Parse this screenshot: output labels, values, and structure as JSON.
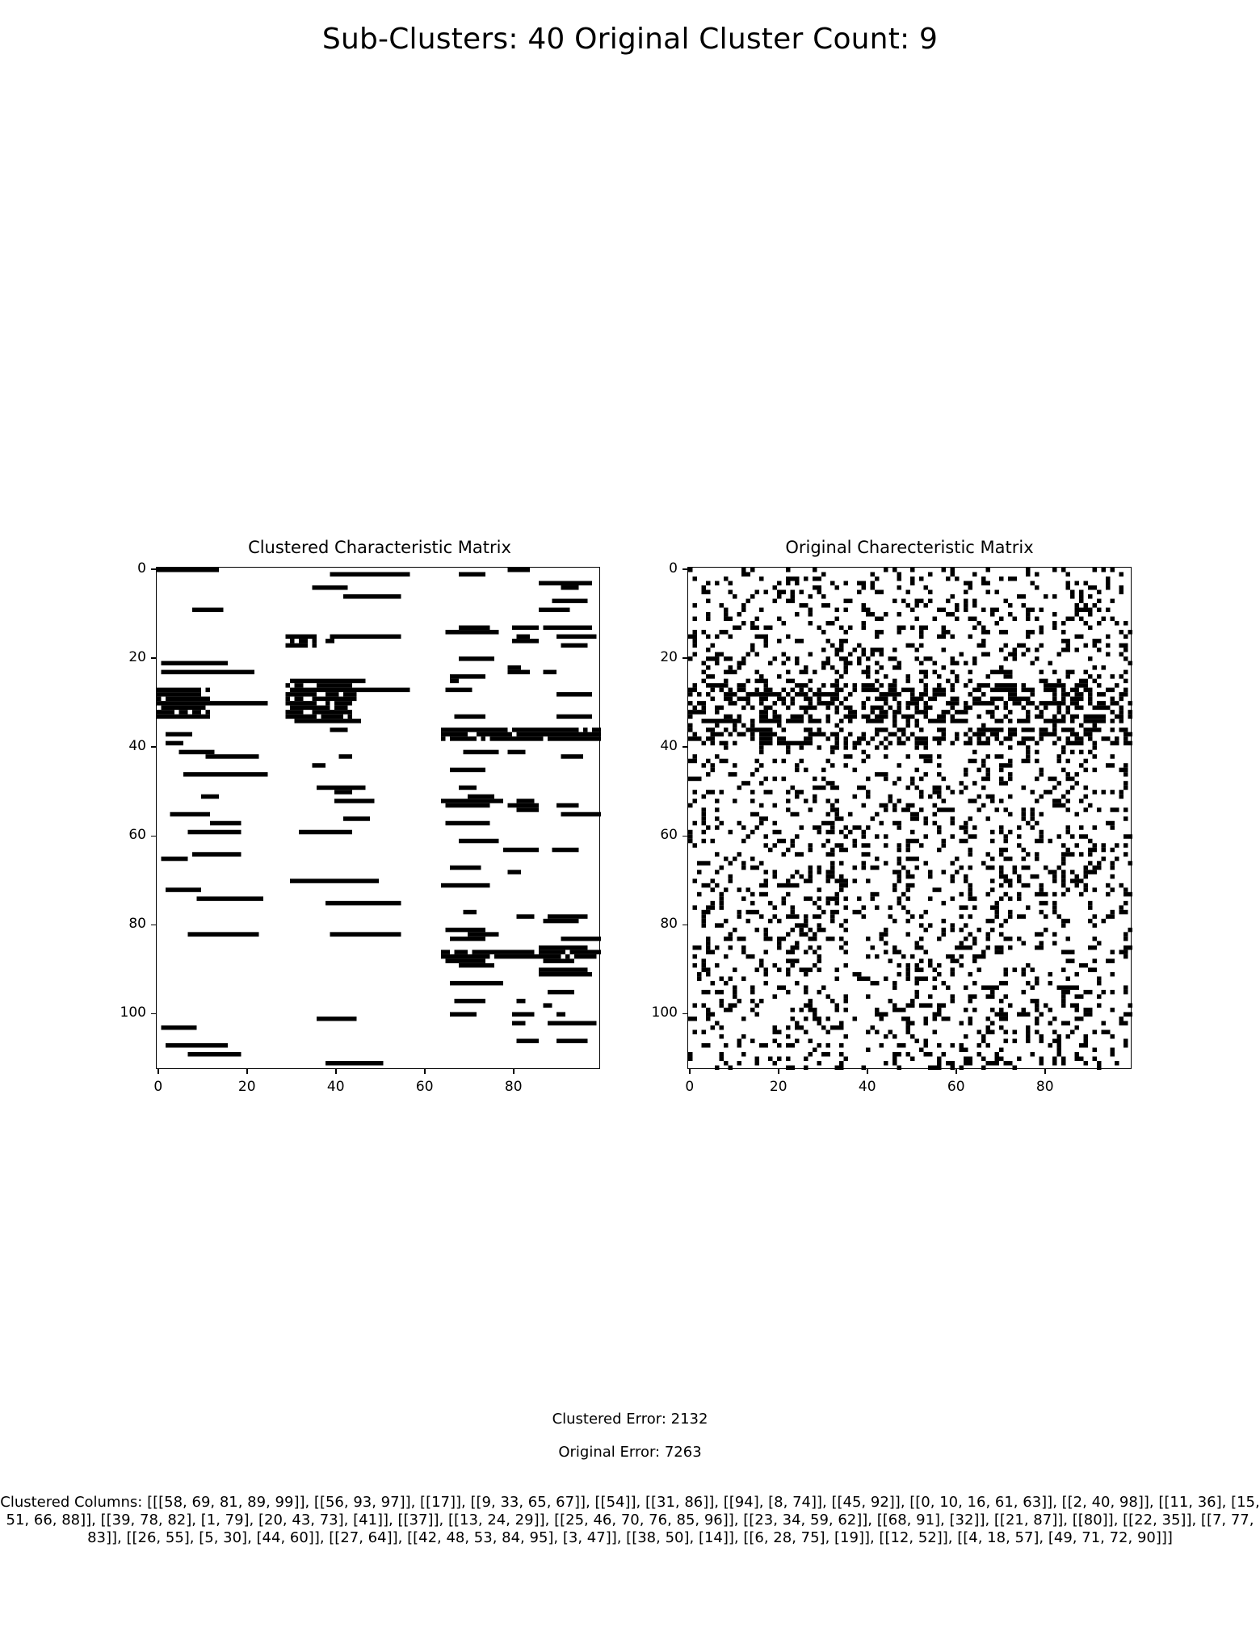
{
  "suptitle": "Sub-Clusters: 40  Original Cluster Count: 9",
  "chart_data": [
    {
      "type": "heatmap",
      "title": "Clustered Characteristic Matrix",
      "rows": 113,
      "cols": 100,
      "colors": {
        "one": "#000000",
        "zero": "#ffffff"
      },
      "xticks": [
        0,
        20,
        40,
        60,
        80
      ],
      "yticks": [
        0,
        20,
        40,
        60,
        80,
        100
      ],
      "pattern": "clustered"
    },
    {
      "type": "heatmap",
      "title": "Original Charecteristic Matrix",
      "rows": 113,
      "cols": 100,
      "colors": {
        "one": "#000000",
        "zero": "#ffffff"
      },
      "xticks": [
        0,
        20,
        40,
        60,
        80
      ],
      "yticks": [
        0,
        20,
        40,
        60,
        80,
        100
      ],
      "pattern": "random"
    }
  ],
  "clustered_error": "Clustered Error: 2132",
  "original_error": "Original Error: 7263",
  "clustered_columns": "Clustered Columns: [[[58, 69, 81, 89, 99]], [[56, 93, 97]], [[17]], [[9, 33, 65, 67]], [[54]], [[31, 86]], [[94], [8, 74]], [[45, 92]], [[0, 10, 16, 61, 63]], [[2, 40, 98]], [[11, 36], [15, 51, 66, 88]], [[39, 78, 82], [1, 79], [20, 43, 73], [41]], [[37]], [[13, 24, 29]], [[25, 46, 70, 76, 85, 96]], [[23, 34, 59, 62]], [[68, 91], [32]], [[21, 87]], [[80]], [[22, 35]], [[7, 77, 83]], [[26, 55], [5, 30], [44, 60]], [[27, 64]], [[42, 48, 53, 84, 95], [3, 47]], [[38, 50], [14]], [[6, 28, 75], [19]], [[12, 52]], [[4, 18, 57], [49, 71, 72, 90]]]"
}
